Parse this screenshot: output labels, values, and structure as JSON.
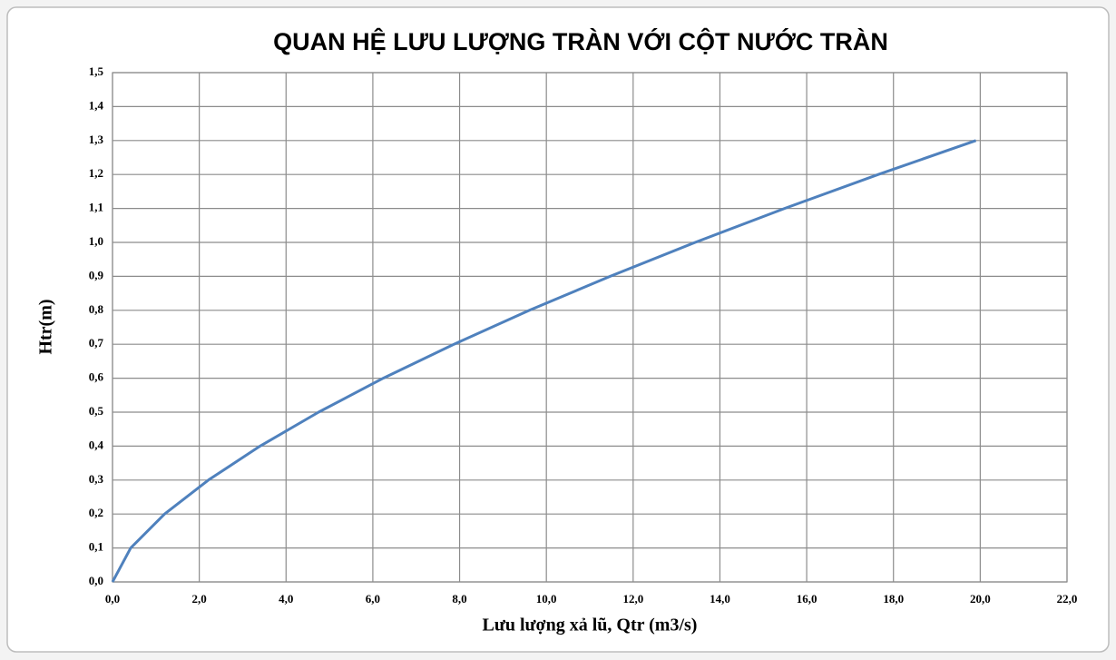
{
  "chart_data": {
    "type": "line",
    "title": "QUAN HỆ LƯU LƯỢNG TRÀN VỚI CỘT NƯỚC TRÀN",
    "x_label": "Lưu lượng xả lũ, Qtr (m3/s)",
    "y_label": "Htr(m)",
    "x": [
      0,
      0.42,
      1.2,
      2.21,
      3.4,
      4.75,
      6.24,
      7.87,
      9.61,
      11.47,
      13.43,
      15.49,
      17.65,
      19.9
    ],
    "series": [
      {
        "color": "#4f81bd",
        "values": [
          0,
          0.1,
          0.2,
          0.3,
          0.4,
          0.5,
          0.6,
          0.7,
          0.8,
          0.9,
          1.0,
          1.1,
          1.2,
          1.3
        ]
      }
    ],
    "xlim": [
      0,
      22
    ],
    "ylim": [
      0,
      1.5
    ],
    "xticks": [
      {
        "value": 0,
        "label": "0,0"
      },
      {
        "value": 2,
        "label": "2,0"
      },
      {
        "value": 4,
        "label": "4,0"
      },
      {
        "value": 6,
        "label": "6,0"
      },
      {
        "value": 8,
        "label": "8,0"
      },
      {
        "value": 10,
        "label": "10,0"
      },
      {
        "value": 12,
        "label": "12,0"
      },
      {
        "value": 14,
        "label": "14,0"
      },
      {
        "value": 16,
        "label": "16,0"
      },
      {
        "value": 18,
        "label": "18,0"
      },
      {
        "value": 20,
        "label": "20,0"
      },
      {
        "value": 22,
        "label": "22,0"
      }
    ],
    "yticks": [
      {
        "value": 0,
        "label": "0,0"
      },
      {
        "value": 0.1,
        "label": "0,1"
      },
      {
        "value": 0.2,
        "label": "0,2"
      },
      {
        "value": 0.3,
        "label": "0,3"
      },
      {
        "value": 0.4,
        "label": "0,4"
      },
      {
        "value": 0.5,
        "label": "0,5"
      },
      {
        "value": 0.6,
        "label": "0,6"
      },
      {
        "value": 0.7,
        "label": "0,7"
      },
      {
        "value": 0.8,
        "label": "0,8"
      },
      {
        "value": 0.9,
        "label": "0,9"
      },
      {
        "value": 1.0,
        "label": "1,0"
      },
      {
        "value": 1.1,
        "label": "1,1"
      },
      {
        "value": 1.2,
        "label": "1,2"
      },
      {
        "value": 1.3,
        "label": "1,3"
      },
      {
        "value": 1.4,
        "label": "1,4"
      },
      {
        "value": 1.5,
        "label": "1,5"
      }
    ],
    "grid": true
  }
}
